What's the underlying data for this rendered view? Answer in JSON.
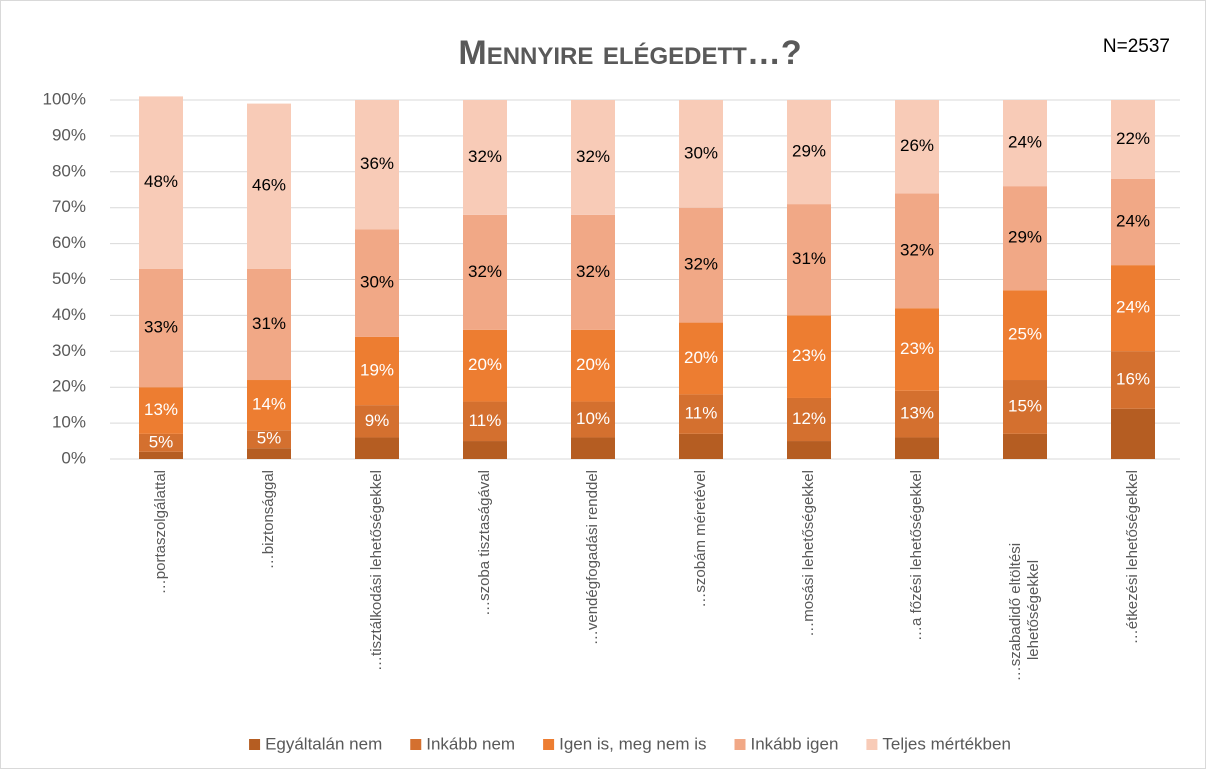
{
  "chart_data": {
    "type": "stacked_bar",
    "title": "Mennyire elégedett…?",
    "annotation": "N=2537",
    "categories": [
      "…portaszolgálattal",
      "…biztonsággal",
      "…tisztálkodási lehetőségekkel",
      "…szoba tisztaságával",
      "…vendégfogadási renddel",
      "…szobám méretével",
      "…mosási lehetőségekkel",
      "…a főzési lehetőségekkel",
      "…szabadidő eltöltési lehetőségekkel",
      "…étkezési lehetőségekkel"
    ],
    "series": [
      {
        "name": "Egyáltalán nem",
        "color": "#b55d22",
        "values": [
          2,
          3,
          6,
          5,
          6,
          7,
          5,
          6,
          7,
          14
        ]
      },
      {
        "name": "Inkább nem",
        "color": "#d4702f",
        "values": [
          5,
          5,
          9,
          11,
          10,
          11,
          12,
          13,
          15,
          16
        ],
        "value_labels": [
          "5%",
          "5%",
          "9%",
          "11%",
          "10%",
          "11%",
          "12%",
          "13%",
          "15%",
          "16%"
        ],
        "label_color": "#ffffff"
      },
      {
        "name": "Igen is, meg nem is",
        "color": "#ed7d31",
        "values": [
          13,
          14,
          19,
          20,
          20,
          20,
          23,
          23,
          25,
          24
        ],
        "value_labels": [
          "13%",
          "14%",
          "19%",
          "20%",
          "20%",
          "20%",
          "23%",
          "23%",
          "25%",
          "24%"
        ],
        "label_color": "#ffffff"
      },
      {
        "name": "Inkább igen",
        "color": "#f1a886",
        "values": [
          33,
          31,
          30,
          32,
          32,
          32,
          31,
          32,
          29,
          24
        ],
        "value_labels": [
          "33%",
          "31%",
          "30%",
          "32%",
          "32%",
          "32%",
          "31%",
          "32%",
          "29%",
          "24%"
        ],
        "label_color": "#000000"
      },
      {
        "name": "Teljes mértékben",
        "color": "#f8cbb7",
        "values": [
          48,
          46,
          36,
          32,
          32,
          30,
          29,
          26,
          24,
          22
        ],
        "value_labels": [
          "48%",
          "46%",
          "36%",
          "32%",
          "32%",
          "30%",
          "29%",
          "26%",
          "24%",
          "22%"
        ],
        "label_color": "#000000"
      }
    ],
    "ylim": [
      0,
      100
    ],
    "yticks": [
      {
        "value": 0,
        "label": "0%"
      },
      {
        "value": 10,
        "label": "10%"
      },
      {
        "value": 20,
        "label": "20%"
      },
      {
        "value": 30,
        "label": "30%"
      },
      {
        "value": 40,
        "label": "40%"
      },
      {
        "value": 50,
        "label": "50%"
      },
      {
        "value": 60,
        "label": "60%"
      },
      {
        "value": 70,
        "label": "70%"
      },
      {
        "value": 80,
        "label": "80%"
      },
      {
        "value": 90,
        "label": "90%"
      },
      {
        "value": 100,
        "label": "100%"
      }
    ],
    "grid": true,
    "legend": "bottom"
  }
}
